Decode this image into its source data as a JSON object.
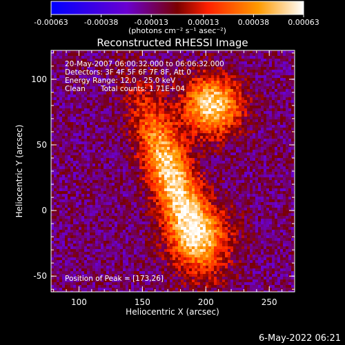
{
  "chart_data": {
    "type": "heatmap",
    "title": "Reconstructed RHESSI Image",
    "xlabel": "Heliocentric X (arcsec)",
    "ylabel": "Heliocentric Y (arcsec)",
    "xlim": [
      78,
      270
    ],
    "ylim": [
      -62,
      122
    ],
    "x_ticks": [
      {
        "value": 100,
        "label": "100"
      },
      {
        "value": 150,
        "label": "150"
      },
      {
        "value": 200,
        "label": "200"
      },
      {
        "value": 250,
        "label": "250"
      }
    ],
    "y_ticks": [
      {
        "value": -50,
        "label": "-50"
      },
      {
        "value": 0,
        "label": "0"
      },
      {
        "value": 50,
        "label": "50"
      },
      {
        "value": 100,
        "label": "100"
      }
    ],
    "colorbar": {
      "range": [
        -0.00063,
        0.00063
      ],
      "tick_labels": [
        "-0.00063",
        "-0.00038",
        "-0.00013",
        "0.00013",
        "0.00038",
        "0.00063"
      ],
      "tick_values": [
        -0.00063,
        -0.00038,
        -0.00013,
        0.00013,
        0.00038,
        0.00063
      ],
      "unit_label": "(photons cm⁻² s⁻¹ asec⁻²)",
      "colors": [
        "#0000ff",
        "#6a00d0",
        "#7a0000",
        "#ff2000",
        "#ff9a00",
        "#ffffff"
      ]
    },
    "annotations": {
      "time_range": "20-May-2007 06:00:32.000 to 06:06:32.000",
      "detectors": "Detectors: 3F 4F 5F 6F 7F 8F, Att 0",
      "energy": "Energy Range: 12.0 - 25.0 keV",
      "clean": "Clean",
      "counts": "Total counts: 1.71E+04",
      "peak": "Position of Peak = [173,26]"
    },
    "peak": {
      "x": 173,
      "y": 26,
      "value": 0.00063
    }
  },
  "footer": {
    "timestamp": "6-May-2022 06:21"
  }
}
